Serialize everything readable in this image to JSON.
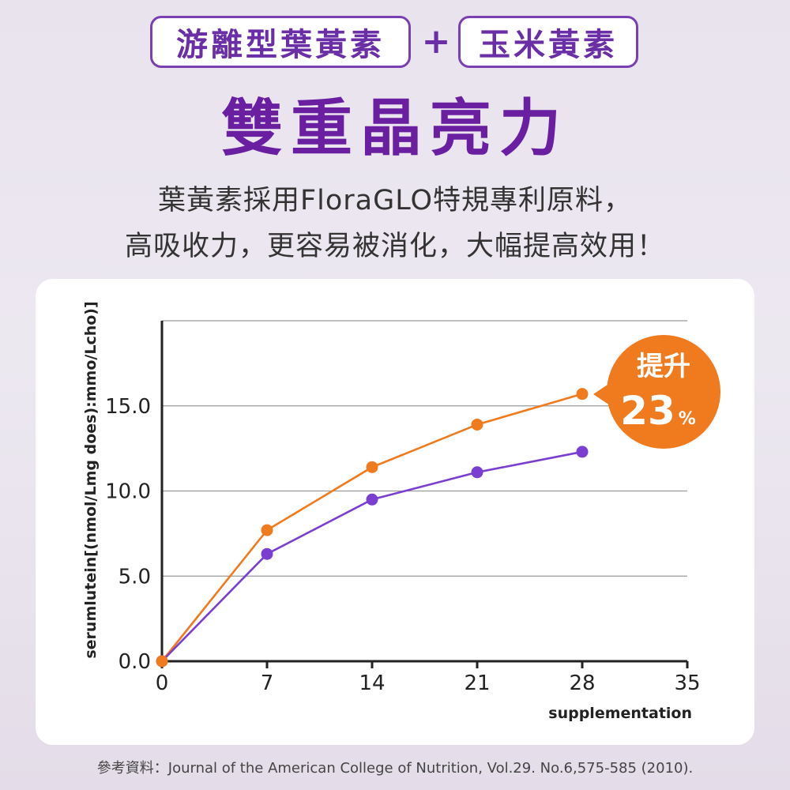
{
  "tags": {
    "left": "游離型葉黃素",
    "plus": "+",
    "right": "玉米黃素"
  },
  "headline": "雙重晶亮力",
  "description": {
    "line1": "葉黃素採用FloraGLO特規專利原料，",
    "line2": "高吸收力，更容易被消化，大幅提高效用！"
  },
  "badge": {
    "line1": "提升",
    "value": "23",
    "unit": "%"
  },
  "reference": "參考資料：Journal of the American College of Nutrition, Vol.29. No.6,575-585 (2010).",
  "colors": {
    "orange": "#f07a1e",
    "purple": "#7a3fd0",
    "accent": "#6a1fa0"
  },
  "chart_data": {
    "type": "line",
    "xlabel": "supplementation",
    "ylabel": "serumlutein[(nmol/Lmg does):mmo/Lcho)]",
    "xlim": [
      0,
      35
    ],
    "ylim": [
      0,
      20
    ],
    "x_ticks": [
      "0",
      "7",
      "14",
      "21",
      "28",
      "35"
    ],
    "y_ticks": [
      "0.0",
      "5.0",
      "10.0",
      "15.0"
    ],
    "grid": true,
    "x": [
      0,
      7,
      14,
      21,
      28
    ],
    "series": [
      {
        "color": "#f07a1e",
        "values": [
          0,
          7.7,
          11.4,
          13.9,
          15.7
        ]
      },
      {
        "color": "#7a3fd0",
        "values": [
          0,
          6.3,
          9.5,
          11.1,
          12.3
        ]
      }
    ]
  }
}
